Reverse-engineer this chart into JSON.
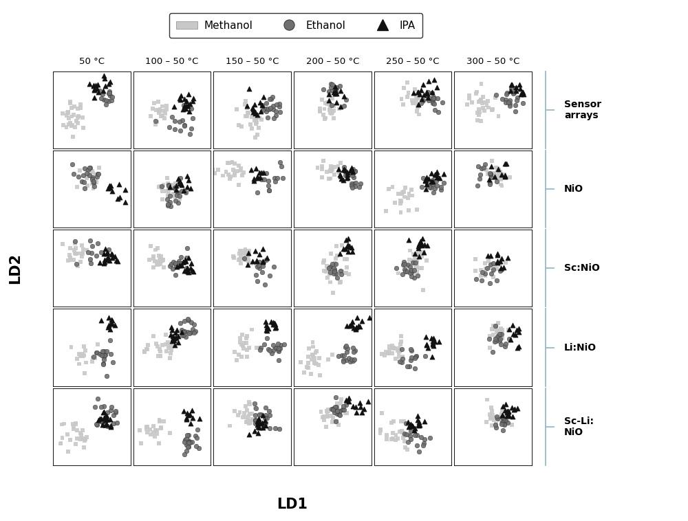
{
  "title": "",
  "xlabel": "LD1",
  "ylabel": "LD2",
  "col_labels": [
    "50 °C",
    "100 – 50 °C",
    "150 – 50 °C",
    "200 – 50 °C",
    "250 – 50 °C",
    "300 – 50 °C"
  ],
  "row_labels": [
    "Sensor\narrays",
    "NiO",
    "Sc:NiO",
    "Li:NiO",
    "Sc-Li:\nNiO"
  ],
  "methanol_color": "#c8c8c8",
  "ethanol_color": "#707070",
  "ipa_color": "#111111",
  "background_color": "#ffffff",
  "n_rows": 5,
  "n_cols": 6
}
